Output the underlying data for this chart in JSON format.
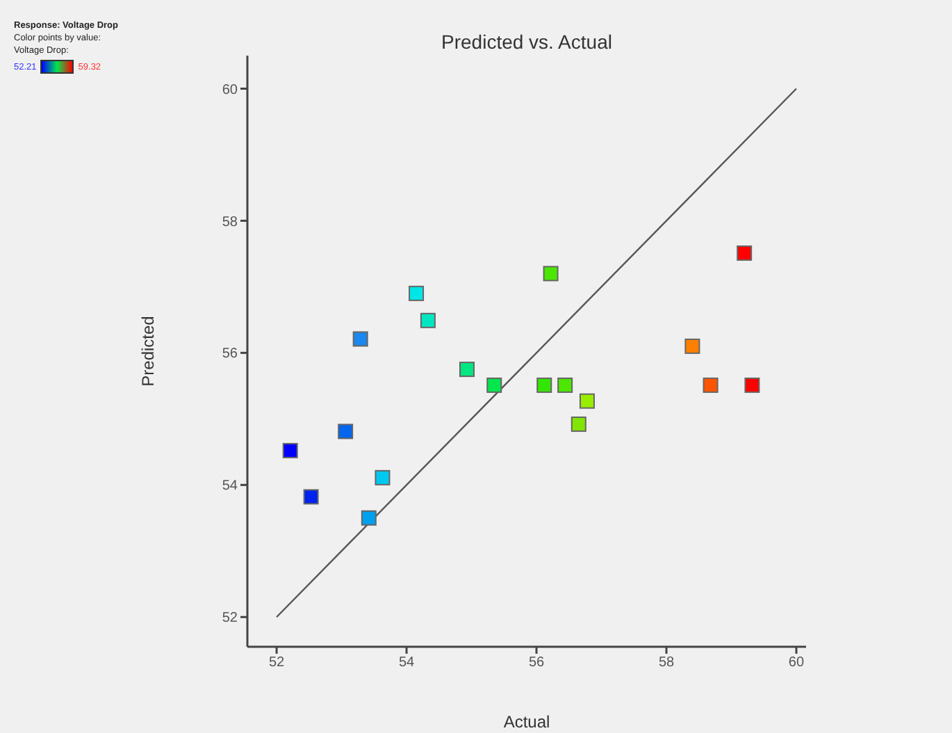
{
  "chart_data": {
    "type": "scatter",
    "title": "Predicted vs. Actual",
    "xlabel": "Actual",
    "ylabel": "Predicted",
    "annotations": [
      "Response: Voltage Drop",
      "Color points by value:",
      "Voltage Drop:",
      "52.21",
      "59.32"
    ],
    "xlim": [
      51.55,
      60.15
    ],
    "ylim": [
      51.55,
      60.5
    ],
    "xticks": [
      52,
      54,
      56,
      58,
      60
    ],
    "yticks": [
      52,
      54,
      56,
      58,
      60
    ],
    "grid": false,
    "marker": "square",
    "series": [
      {
        "type": "scatter",
        "x": [
          52.21,
          52.53,
          53.06,
          53.29,
          53.42,
          53.63,
          54.15,
          54.33,
          54.93,
          55.35,
          56.12,
          56.22,
          56.44,
          56.65,
          56.78,
          58.4,
          58.68,
          59.2,
          59.32
        ],
        "values": [
          54.52,
          53.82,
          54.81,
          56.21,
          53.5,
          54.11,
          56.9,
          56.49,
          55.75,
          55.51,
          55.51,
          57.2,
          55.51,
          54.92,
          55.27,
          56.1,
          55.51,
          57.51,
          55.51
        ],
        "colors": [
          "#0000ff",
          "#0022ee",
          "#0066ee",
          "#1a88ee",
          "#00a0ee",
          "#00c8f0",
          "#00e6e6",
          "#00e6c0",
          "#00e680",
          "#00e64d",
          "#33e600",
          "#4de600",
          "#4de600",
          "#80e600",
          "#99ee00",
          "#ff8000",
          "#ff5500",
          "#ff0000",
          "#ff0000"
        ]
      },
      {
        "type": "line",
        "color": "#555555",
        "marker": "none",
        "x": [
          52,
          60
        ],
        "values": [
          52,
          60
        ]
      }
    ]
  }
}
